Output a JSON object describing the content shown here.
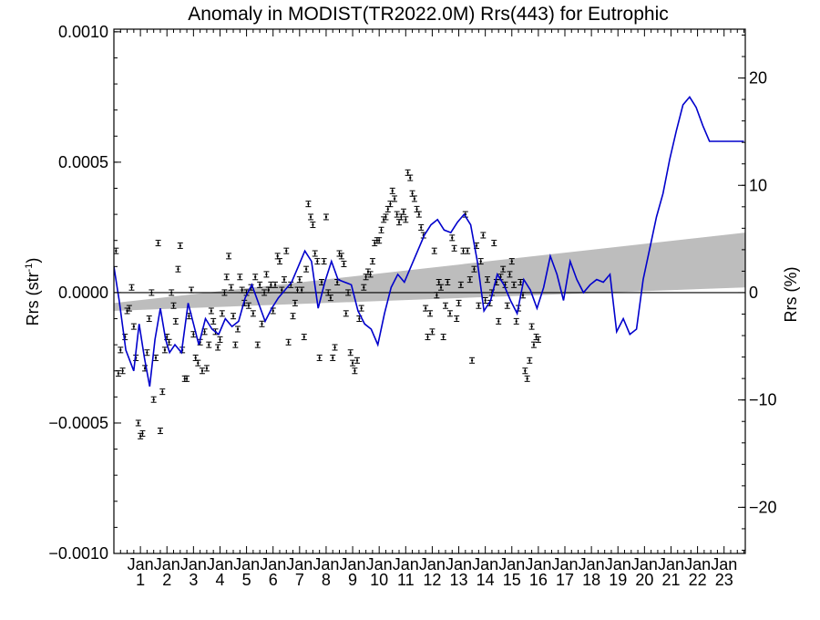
{
  "chart_data": {
    "type": "scatter",
    "title": "Anomaly in MODIST(TR2022.0M) Rrs(443) for Eutrophic",
    "ylabel_left": "Rrs (str",
    "ylabel_left_sup": "-1",
    "ylabel_left_close": ")",
    "ylabel_right": "Rrs (%)",
    "ylim": [
      -0.001,
      0.00101
    ],
    "y2lim": [
      -24.3,
      24.55
    ],
    "xlim": [
      2000.0,
      2023.8
    ],
    "yticks": [
      {
        "value": 0.001,
        "label": "0.0010"
      },
      {
        "value": 0.0005,
        "label": "0.0005"
      },
      {
        "value": 0.0,
        "label": "0.0000"
      },
      {
        "value": -0.0005,
        "label": "−0.0005"
      },
      {
        "value": -0.001,
        "label": "−0.0010"
      }
    ],
    "y2ticks": [
      {
        "value": 20,
        "label": "20"
      },
      {
        "value": 10,
        "label": "10"
      },
      {
        "value": 0,
        "label": "0"
      },
      {
        "value": -10,
        "label": "−10"
      },
      {
        "value": -20,
        "label": "−20"
      }
    ],
    "xticks": [
      {
        "value": 2001,
        "month": "Jan",
        "year": "1"
      },
      {
        "value": 2002,
        "month": "Jan",
        "year": "2"
      },
      {
        "value": 2003,
        "month": "Jan",
        "year": "3"
      },
      {
        "value": 2004,
        "month": "Jan",
        "year": "4"
      },
      {
        "value": 2005,
        "month": "Jan",
        "year": "5"
      },
      {
        "value": 2006,
        "month": "Jan",
        "year": "6"
      },
      {
        "value": 2007,
        "month": "Jan",
        "year": "7"
      },
      {
        "value": 2008,
        "month": "Jan",
        "year": "8"
      },
      {
        "value": 2009,
        "month": "Jan",
        "year": "9"
      },
      {
        "value": 2010,
        "month": "Jan",
        "year": "10"
      },
      {
        "value": 2011,
        "month": "Jan",
        "year": "11"
      },
      {
        "value": 2012,
        "month": "Jan",
        "year": "12"
      },
      {
        "value": 2013,
        "month": "Jan",
        "year": "13"
      },
      {
        "value": 2014,
        "month": "Jan",
        "year": "14"
      },
      {
        "value": 2015,
        "month": "Jan",
        "year": "15"
      },
      {
        "value": 2016,
        "month": "Jan",
        "year": "16"
      },
      {
        "value": 2017,
        "month": "Jan",
        "year": "17"
      },
      {
        "value": 2018,
        "month": "Jan",
        "year": "18"
      },
      {
        "value": 2019,
        "month": "Jan",
        "year": "19"
      },
      {
        "value": 2020,
        "month": "Jan",
        "year": "20"
      },
      {
        "value": 2021,
        "month": "Jan",
        "year": "21"
      },
      {
        "value": 2022,
        "month": "Jan",
        "year": "22"
      },
      {
        "value": 2023,
        "month": "Jan",
        "year": "23"
      }
    ],
    "trend_band": {
      "x": [
        2000.0,
        2023.8
      ],
      "lower": [
        -7e-05,
        2e-05
      ],
      "upper": [
        -4e-05,
        0.00023
      ]
    },
    "zero_line": 0,
    "colors": {
      "smoothed": "#0000cc",
      "points": "#000000",
      "band": "#bdbdbd",
      "zero": "#000000"
    },
    "points": [
      [
        2000.08,
        0.00016
      ],
      [
        2000.17,
        -0.00031
      ],
      [
        2000.25,
        -0.00022
      ],
      [
        2000.33,
        -0.0003
      ],
      [
        2000.42,
        -0.00017
      ],
      [
        2000.5,
        -7e-05
      ],
      [
        2000.58,
        -6e-05
      ],
      [
        2000.67,
        2e-05
      ],
      [
        2000.75,
        -0.00013
      ],
      [
        2000.83,
        -0.00025
      ],
      [
        2000.92,
        -0.0005
      ],
      [
        2001.0,
        -0.00055
      ],
      [
        2001.08,
        -0.00054
      ],
      [
        2001.17,
        -0.00029
      ],
      [
        2001.25,
        -0.00023
      ],
      [
        2001.33,
        -0.0001
      ],
      [
        2001.42,
        0.0
      ],
      [
        2001.5,
        -0.00041
      ],
      [
        2001.58,
        -0.00025
      ],
      [
        2001.67,
        0.00019
      ],
      [
        2001.75,
        -0.00053
      ],
      [
        2001.83,
        -0.00038
      ],
      [
        2001.92,
        -0.00022
      ],
      [
        2002.0,
        -0.00017
      ],
      [
        2002.08,
        -0.00019
      ],
      [
        2002.17,
        0.0
      ],
      [
        2002.25,
        -5e-05
      ],
      [
        2002.33,
        -0.00011
      ],
      [
        2002.42,
        9e-05
      ],
      [
        2002.5,
        0.00018
      ],
      [
        2002.58,
        -0.00022
      ],
      [
        2002.67,
        -0.00033
      ],
      [
        2002.75,
        -0.00033
      ],
      [
        2002.83,
        -9e-05
      ],
      [
        2002.92,
        1e-05
      ],
      [
        2003.0,
        -0.00016
      ],
      [
        2003.08,
        -0.00025
      ],
      [
        2003.17,
        -0.00027
      ],
      [
        2003.25,
        -0.00019
      ],
      [
        2003.33,
        -0.0003
      ],
      [
        2003.42,
        -0.00015
      ],
      [
        2003.5,
        -0.00029
      ],
      [
        2003.58,
        -0.0002
      ],
      [
        2003.67,
        -7e-05
      ],
      [
        2003.75,
        -0.00011
      ],
      [
        2003.83,
        -0.00015
      ],
      [
        2003.92,
        -0.00021
      ],
      [
        2004.0,
        -0.00018
      ],
      [
        2004.08,
        -8e-05
      ],
      [
        2004.17,
        0.0
      ],
      [
        2004.25,
        6e-05
      ],
      [
        2004.33,
        0.00014
      ],
      [
        2004.42,
        2e-05
      ],
      [
        2004.5,
        -9e-05
      ],
      [
        2004.58,
        -0.0002
      ],
      [
        2004.67,
        -0.00014
      ],
      [
        2004.75,
        6e-05
      ],
      [
        2004.83,
        1e-05
      ],
      [
        2004.92,
        -4e-05
      ],
      [
        2005.0,
        0.0
      ],
      [
        2005.08,
        -5e-05
      ],
      [
        2005.17,
        2e-05
      ],
      [
        2005.25,
        -8e-05
      ],
      [
        2005.33,
        6e-05
      ],
      [
        2005.42,
        -0.0002
      ],
      [
        2005.5,
        3e-05
      ],
      [
        2005.58,
        -0.00012
      ],
      [
        2005.67,
        0.0
      ],
      [
        2005.75,
        7e-05
      ],
      [
        2005.83,
        1e-05
      ],
      [
        2005.92,
        3e-05
      ],
      [
        2006.0,
        -7e-05
      ],
      [
        2006.08,
        3e-05
      ],
      [
        2006.17,
        0.00014
      ],
      [
        2006.25,
        0.00012
      ],
      [
        2006.33,
        1e-05
      ],
      [
        2006.42,
        5e-05
      ],
      [
        2006.5,
        0.00016
      ],
      [
        2006.58,
        -0.00019
      ],
      [
        2006.67,
        3e-05
      ],
      [
        2006.75,
        -9e-05
      ],
      [
        2006.83,
        -4e-05
      ],
      [
        2006.92,
        1e-05
      ],
      [
        2007.0,
        5e-05
      ],
      [
        2007.08,
        1e-05
      ],
      [
        2007.17,
        -0.00017
      ],
      [
        2007.25,
        9e-05
      ],
      [
        2007.33,
        0.00034
      ],
      [
        2007.42,
        0.00029
      ],
      [
        2007.5,
        0.00026
      ],
      [
        2007.58,
        0.00015
      ],
      [
        2007.67,
        0.00012
      ],
      [
        2007.75,
        -0.00025
      ],
      [
        2007.83,
        4e-05
      ],
      [
        2007.92,
        0.00012
      ],
      [
        2008.0,
        0.00029
      ],
      [
        2008.08,
        0.0
      ],
      [
        2008.17,
        -2e-05
      ],
      [
        2008.25,
        -0.00025
      ],
      [
        2008.33,
        -0.00021
      ],
      [
        2008.42,
        4e-05
      ],
      [
        2008.5,
        0.00015
      ],
      [
        2008.58,
        0.00014
      ],
      [
        2008.67,
        0.00011
      ],
      [
        2008.75,
        -8e-05
      ],
      [
        2008.83,
        0.0
      ],
      [
        2008.92,
        -0.00023
      ],
      [
        2009.0,
        -0.00027
      ],
      [
        2009.08,
        -0.0003
      ],
      [
        2009.17,
        -0.00026
      ],
      [
        2009.25,
        -0.0001
      ],
      [
        2009.33,
        -6e-05
      ],
      [
        2009.42,
        2e-05
      ],
      [
        2009.5,
        6e-05
      ],
      [
        2009.58,
        8e-05
      ],
      [
        2009.67,
        7e-05
      ],
      [
        2009.75,
        0.00012
      ],
      [
        2009.83,
        0.00019
      ],
      [
        2009.92,
        0.0002
      ],
      [
        2010.0,
        0.0002
      ],
      [
        2010.08,
        0.00024
      ],
      [
        2010.17,
        0.00028
      ],
      [
        2010.25,
        0.00029
      ],
      [
        2010.33,
        0.00032
      ],
      [
        2010.42,
        0.00034
      ],
      [
        2010.5,
        0.00039
      ],
      [
        2010.58,
        0.00036
      ],
      [
        2010.67,
        0.0003
      ],
      [
        2010.75,
        0.00027
      ],
      [
        2010.83,
        0.00029
      ],
      [
        2010.92,
        0.00031
      ],
      [
        2011.0,
        0.00028
      ],
      [
        2011.08,
        0.00046
      ],
      [
        2011.17,
        0.00044
      ],
      [
        2011.25,
        0.00038
      ],
      [
        2011.33,
        0.00036
      ],
      [
        2011.42,
        0.00032
      ],
      [
        2011.5,
        0.0003
      ],
      [
        2011.58,
        0.00025
      ],
      [
        2011.67,
        0.00022
      ],
      [
        2011.75,
        -6e-05
      ],
      [
        2011.83,
        -0.00017
      ],
      [
        2011.92,
        -8e-05
      ],
      [
        2012.0,
        -0.00015
      ],
      [
        2012.08,
        0.00016
      ],
      [
        2012.17,
        -1e-05
      ],
      [
        2012.25,
        4e-05
      ],
      [
        2012.33,
        2e-05
      ],
      [
        2012.42,
        -0.00017
      ],
      [
        2012.5,
        -5e-05
      ],
      [
        2012.58,
        4e-05
      ],
      [
        2012.67,
        -8e-05
      ],
      [
        2012.75,
        0.00021
      ],
      [
        2012.83,
        0.00017
      ],
      [
        2012.92,
        -0.0001
      ],
      [
        2013.0,
        -4e-05
      ],
      [
        2013.08,
        3e-05
      ],
      [
        2013.17,
        0.00016
      ],
      [
        2013.25,
        0.0003
      ],
      [
        2013.33,
        0.00016
      ],
      [
        2013.42,
        5e-05
      ],
      [
        2013.5,
        -0.00026
      ],
      [
        2013.58,
        9e-05
      ],
      [
        2013.67,
        0.00018
      ],
      [
        2013.75,
        -5e-05
      ],
      [
        2013.83,
        0.00012
      ],
      [
        2013.92,
        0.00022
      ],
      [
        2014.0,
        -3e-05
      ],
      [
        2014.08,
        5e-05
      ],
      [
        2014.17,
        -4e-05
      ],
      [
        2014.25,
        0.0
      ],
      [
        2014.33,
        0.00019
      ],
      [
        2014.42,
        4e-05
      ],
      [
        2014.5,
        -0.00011
      ],
      [
        2014.58,
        6e-05
      ],
      [
        2014.67,
        9e-05
      ],
      [
        2014.75,
        3e-05
      ],
      [
        2014.83,
        -5e-05
      ],
      [
        2014.92,
        7e-05
      ],
      [
        2015.0,
        0.00012
      ],
      [
        2015.08,
        3e-05
      ],
      [
        2015.17,
        -0.00011
      ],
      [
        2015.25,
        -6e-05
      ],
      [
        2015.33,
        4e-05
      ],
      [
        2015.42,
        -1e-05
      ],
      [
        2015.5,
        -0.0003
      ],
      [
        2015.58,
        -0.00033
      ],
      [
        2015.67,
        -0.00026
      ],
      [
        2015.75,
        -0.00013
      ],
      [
        2015.83,
        -0.0002
      ],
      [
        2015.92,
        -0.00017
      ],
      [
        2016.0,
        -0.00018
      ]
    ],
    "smoothed_x": [
      2000.0,
      2000.2,
      2000.45,
      2000.75,
      2000.95,
      2001.15,
      2001.35,
      2001.55,
      2001.75,
      2001.95,
      2002.1,
      2002.3,
      2002.55,
      2002.8,
      2003.0,
      2003.2,
      2003.45,
      2003.7,
      2003.95,
      2004.2,
      2004.45,
      2004.7,
      2004.95,
      2005.2,
      2005.45,
      2005.7,
      2005.95,
      2006.2,
      2006.45,
      2006.7,
      2006.95,
      2007.2,
      2007.45,
      2007.7,
      2007.95,
      2008.2,
      2008.45,
      2008.7,
      2008.95,
      2009.2,
      2009.45,
      2009.7,
      2009.95,
      2010.2,
      2010.45,
      2010.7,
      2010.95,
      2011.2,
      2011.45,
      2011.7,
      2011.95,
      2012.2,
      2012.45,
      2012.7,
      2012.95,
      2013.2,
      2013.45,
      2013.7,
      2013.95,
      2014.2,
      2014.45,
      2014.7,
      2014.95,
      2015.2,
      2015.45,
      2015.7,
      2015.95,
      2016.2,
      2016.45,
      2016.7,
      2016.95,
      2017.2,
      2017.45,
      2017.7,
      2017.95,
      2018.2,
      2018.45,
      2018.7,
      2018.95,
      2019.2,
      2019.45,
      2019.7,
      2019.95,
      2020.2,
      2020.45,
      2020.7,
      2020.95,
      2021.2,
      2021.45,
      2021.7,
      2021.95,
      2022.2,
      2022.45,
      2022.7,
      2022.95,
      2023.2,
      2023.45,
      2023.6,
      2023.75
    ],
    "smoothed_y": [
      0.0001,
      -3e-05,
      -0.00022,
      -0.0003,
      -0.00012,
      -0.00025,
      -0.00036,
      -0.00018,
      -6e-05,
      -0.00018,
      -0.00023,
      -0.0002,
      -0.00023,
      -4e-05,
      -0.00012,
      -0.0002,
      -0.0001,
      -0.00014,
      -0.00016,
      -0.0001,
      -0.00013,
      -0.00011,
      -2e-05,
      3e-05,
      -4e-05,
      -0.00011,
      -6e-05,
      -2e-05,
      1e-05,
      4e-05,
      0.0001,
      0.00016,
      0.00012,
      -6e-05,
      4e-05,
      0.00012,
      5e-05,
      4e-05,
      3e-05,
      -7e-05,
      -0.00012,
      -0.00014,
      -0.0002,
      -8e-05,
      2e-05,
      7e-05,
      4e-05,
      0.0001,
      0.00016,
      0.00022,
      0.00026,
      0.00028,
      0.00024,
      0.00023,
      0.00027,
      0.0003,
      0.00026,
      0.00012,
      -7e-05,
      -3e-05,
      7e-05,
      3e-05,
      -3e-05,
      -8e-05,
      5e-05,
      1e-05,
      -6e-05,
      2e-05,
      0.00014,
      7e-05,
      -3e-05,
      0.00012,
      5e-05,
      0.0,
      3e-05,
      5e-05,
      4e-05,
      7e-05,
      -0.00015,
      -0.0001,
      -0.00016,
      -0.00014,
      5e-05,
      0.00017,
      0.00029,
      0.00038,
      0.00051,
      0.00062,
      0.00072,
      0.00075,
      0.00071,
      0.00064,
      0.00058,
      0.00058,
      0.00058,
      0.00058,
      0.00058,
      0.00058,
      0.00058
    ]
  }
}
